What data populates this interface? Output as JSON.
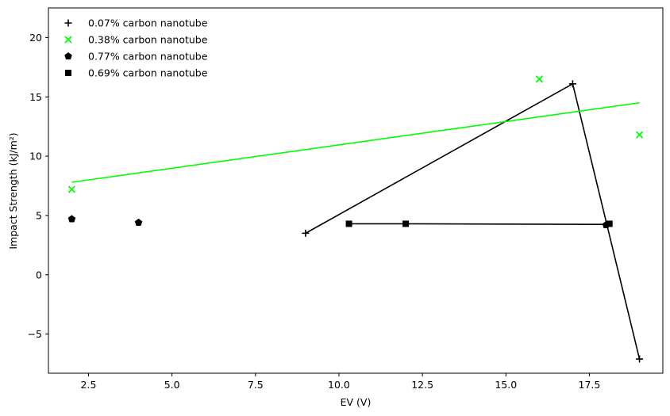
{
  "chart_data": {
    "type": "scatter",
    "xlabel": "EV (V)",
    "ylabel": "Impact Strength (kJ/m²)",
    "xlim": [
      1.3,
      19.7
    ],
    "ylim": [
      -8.3,
      22.5
    ],
    "xticks": [
      2.5,
      5.0,
      7.5,
      10.0,
      12.5,
      15.0,
      17.5
    ],
    "xtick_labels": [
      "2.5",
      "5.0",
      "7.5",
      "10.0",
      "12.5",
      "15.0",
      "17.5"
    ],
    "yticks": [
      -5,
      0,
      5,
      10,
      15,
      20
    ],
    "ytick_labels": [
      "−5",
      "0",
      "5",
      "10",
      "15",
      "20"
    ],
    "grid": false,
    "legend_position": "top-left",
    "series": [
      {
        "name": "0.07% carbon nanotube",
        "marker": "plus",
        "color": "#000000",
        "x": [
          9.0,
          17.0,
          19.0
        ],
        "y": [
          3.5,
          16.1,
          -7.1
        ],
        "line": {
          "color": "#000000",
          "x": [
            9.0,
            17.0,
            19.0
          ],
          "y": [
            3.5,
            16.1,
            -7.1
          ]
        }
      },
      {
        "name": "0.38% carbon nanotube",
        "marker": "x",
        "color": "#00ff00",
        "x": [
          2.0,
          16.0,
          19.0
        ],
        "y": [
          7.2,
          16.5,
          11.8
        ],
        "line": {
          "color": "#00ff00",
          "x": [
            2.0,
            19.0
          ],
          "y": [
            7.8,
            14.5
          ]
        }
      },
      {
        "name": "0.77% carbon nanotube",
        "marker": "pentagon",
        "color": "#000000",
        "x": [
          2.0,
          4.0,
          18.0
        ],
        "y": [
          4.7,
          4.4,
          4.2
        ],
        "line": null
      },
      {
        "name": "0.69% carbon nanotube",
        "marker": "square",
        "color": "#000000",
        "x": [
          10.3,
          12.0,
          18.1
        ],
        "y": [
          4.3,
          4.3,
          4.3
        ],
        "line": {
          "color": "#000000",
          "x": [
            10.3,
            12.0,
            18.1
          ],
          "y": [
            4.3,
            4.3,
            4.25
          ]
        }
      }
    ]
  }
}
